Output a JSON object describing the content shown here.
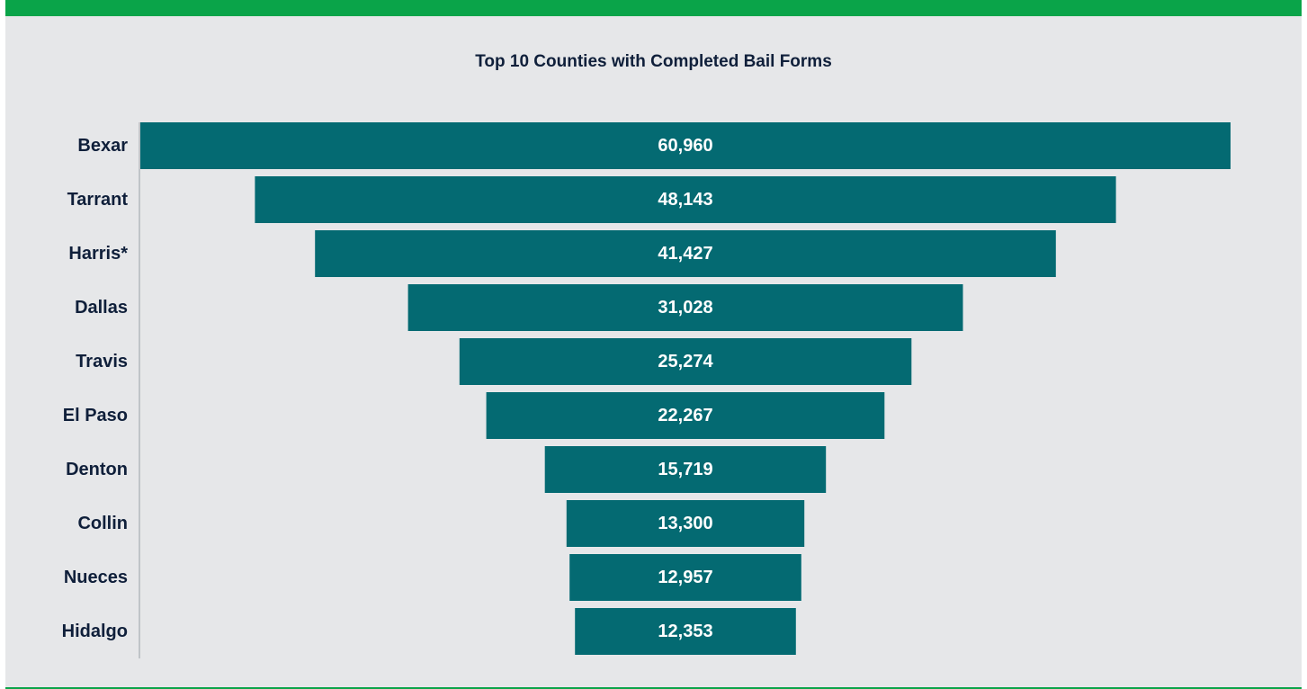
{
  "chart_data": {
    "type": "bar",
    "orientation": "horizontal-funnel",
    "title": "Top 10 Counties with Completed Bail Forms",
    "categories": [
      "Bexar",
      "Tarrant",
      "Harris*",
      "Dallas",
      "Travis",
      "El Paso",
      "Denton",
      "Collin",
      "Nueces",
      "Hidalgo"
    ],
    "values": [
      60960,
      48143,
      41427,
      31028,
      25274,
      22267,
      15719,
      13300,
      12957,
      12353
    ],
    "value_labels": [
      "60,960",
      "48,143",
      "41,427",
      "31,028",
      "25,274",
      "22,267",
      "15,719",
      "13,300",
      "12,957",
      "12,353"
    ],
    "xlabel": "",
    "ylabel": "",
    "grid": false,
    "legend": "none"
  },
  "colors": {
    "bar": "#046a72",
    "bar_text": "#ffffff",
    "category_text": "#0f1f3a",
    "background": "#e6e7e9",
    "accent_rule": "#0aa449",
    "axis_line": "#9aa0a6"
  }
}
